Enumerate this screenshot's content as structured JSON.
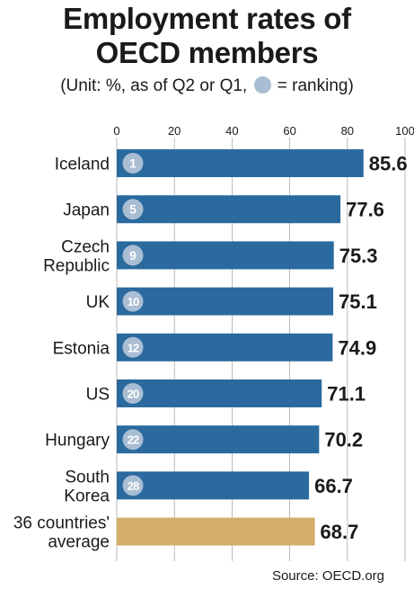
{
  "title_line1": "Employment rates of",
  "title_line2": "OECD members",
  "subtitle_before": "(Unit: %, as of Q2 or Q1,",
  "subtitle_after": "= ranking)",
  "source": "Source: OECD.org",
  "colors": {
    "bar": "#2a6a9e",
    "average_bar": "#d4ad6a",
    "rank_circle": "#a9bdd3",
    "text": "#1a1a1a",
    "grid": "#aaaaaa"
  },
  "chart_data": {
    "type": "bar",
    "orientation": "horizontal",
    "xlim": [
      0,
      100
    ],
    "ticks": [
      0,
      20,
      40,
      60,
      80,
      100
    ],
    "grid": true,
    "bars": [
      {
        "label": [
          "Iceland"
        ],
        "rank": "1",
        "value": 85.6
      },
      {
        "label": [
          "Japan"
        ],
        "rank": "5",
        "value": 77.6
      },
      {
        "label": [
          "Czech",
          "Republic"
        ],
        "rank": "9",
        "value": 75.3
      },
      {
        "label": [
          "UK"
        ],
        "rank": "10",
        "value": 75.1
      },
      {
        "label": [
          "Estonia"
        ],
        "rank": "12",
        "value": 74.9
      },
      {
        "label": [
          "US"
        ],
        "rank": "20",
        "value": 71.1
      },
      {
        "label": [
          "Hungary"
        ],
        "rank": "22",
        "value": 70.2
      },
      {
        "label": [
          "South",
          "Korea"
        ],
        "rank": "28",
        "value": 66.7
      },
      {
        "label": [
          "36 countries'",
          "average"
        ],
        "rank": "",
        "value": 68.7,
        "average": true
      }
    ]
  }
}
